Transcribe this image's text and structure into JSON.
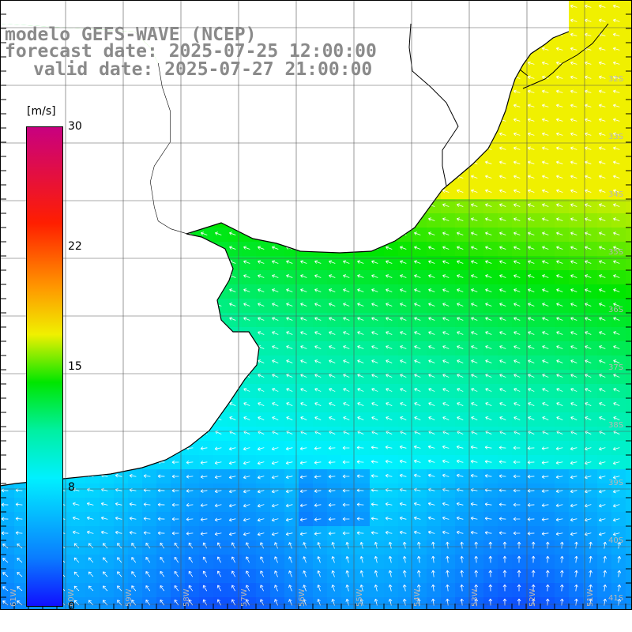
{
  "title": {
    "line1": "modelo GEFS-WAVE (NCEP)",
    "line2": "forecast date: 2025-07-25 12:00:00",
    "line3": "valid date: 2025-07-27 21:00:00"
  },
  "colorbar": {
    "unit": "[m/s]",
    "ticks": [
      "30",
      "22",
      "15",
      "8",
      "0"
    ],
    "tick_values": [
      30,
      22,
      15,
      8,
      0
    ],
    "range": [
      0,
      30
    ],
    "stops": [
      {
        "v": 0,
        "c": "#1010ff"
      },
      {
        "v": 3,
        "c": "#0a7cff"
      },
      {
        "v": 8,
        "c": "#00f0ff"
      },
      {
        "v": 11,
        "c": "#00f0a0"
      },
      {
        "v": 14,
        "c": "#00e600"
      },
      {
        "v": 17,
        "c": "#f0f000"
      },
      {
        "v": 20,
        "c": "#ff9600"
      },
      {
        "v": 24,
        "c": "#ff1e00"
      },
      {
        "v": 30,
        "c": "#c80080"
      }
    ]
  },
  "map": {
    "lat_labels": [
      "32S",
      "33S",
      "34S",
      "35S",
      "36S",
      "37S",
      "38S",
      "39S",
      "40S",
      "41S"
    ],
    "lon_labels": [
      "61W",
      "60W",
      "59W",
      "58W",
      "57W",
      "56W",
      "55W",
      "54W",
      "53W",
      "52W",
      "51W"
    ],
    "land_color": "#ffffff",
    "coast_color": "#000000",
    "grid_color": "#000000",
    "wind_field": {
      "variable": "wind speed",
      "unit": "m/s",
      "approx_max": 17,
      "approx_min": 2
    }
  }
}
